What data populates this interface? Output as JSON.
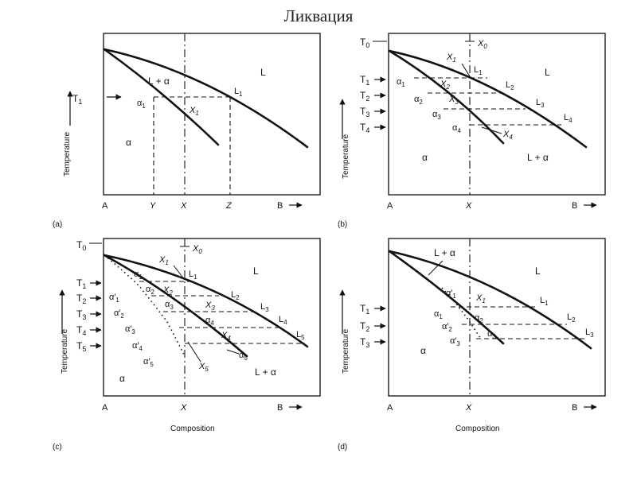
{
  "title": "Ликвация",
  "panel_a": {
    "caption": "(a)",
    "ylabel": "Temperature",
    "T1": "T",
    "x_A": "A",
    "x_Y": "Y",
    "x_X": "X",
    "x_Z": "Z",
    "x_B": "B",
    "region_L": "L",
    "region_Lalpha": "L + α",
    "region_alpha": "α",
    "alpha1": "α",
    "X1": "X",
    "L1": "L"
  },
  "panel_b": {
    "caption": "(b)",
    "ylabel": "Temperature",
    "T0": "T",
    "T1": "T",
    "T2": "T",
    "T3": "T",
    "T4": "T",
    "X0": "X",
    "x_A": "A",
    "x_X": "X",
    "x_B": "B",
    "X1": "X",
    "X2": "X",
    "X3": "X",
    "X4": "X",
    "L1": "L",
    "L2": "L",
    "L3": "L",
    "L4": "L",
    "a1": "α",
    "a2": "α",
    "a3": "α",
    "a4": "α",
    "region_L": "L",
    "region_alpha": "α",
    "region_Lalpha": "L + α"
  },
  "panel_c": {
    "caption": "(c)",
    "ylabel": "Temperature",
    "xlabel": "Composition",
    "T0": "T",
    "T1": "T",
    "T2": "T",
    "T3": "T",
    "T4": "T",
    "T5": "T",
    "X0": "X",
    "x_A": "A",
    "x_X": "X",
    "x_B": "B",
    "X1": "X",
    "X2": "X",
    "X3": "X",
    "X4": "X",
    "X5": "X",
    "L1": "L",
    "L2": "L",
    "L3": "L",
    "L4": "L",
    "L5": "L",
    "a1": "α",
    "a2": "α",
    "a3": "α",
    "a4": "α",
    "a5": "α",
    "ap1": "α′",
    "ap2": "α′",
    "ap3": "α′",
    "ap4": "α′",
    "ap5": "α′",
    "region_L": "L",
    "region_alpha": "α",
    "region_Lalpha": "L + α"
  },
  "panel_d": {
    "caption": "(d)",
    "ylabel": "Temperature",
    "xlabel": "Composition",
    "T1": "T",
    "T2": "T",
    "T3": "T",
    "x_A": "A",
    "x_X": "X",
    "x_B": "B",
    "X1": "X",
    "L1": "L",
    "L2": "L",
    "L3": "L",
    "a1": "α",
    "a2": "α",
    "a3": "α",
    "ap1": "α′",
    "ap2": "α′",
    "ap3": "α′",
    "region_Lalpha": "L + α",
    "region_L": "L",
    "region_alpha": "α"
  }
}
